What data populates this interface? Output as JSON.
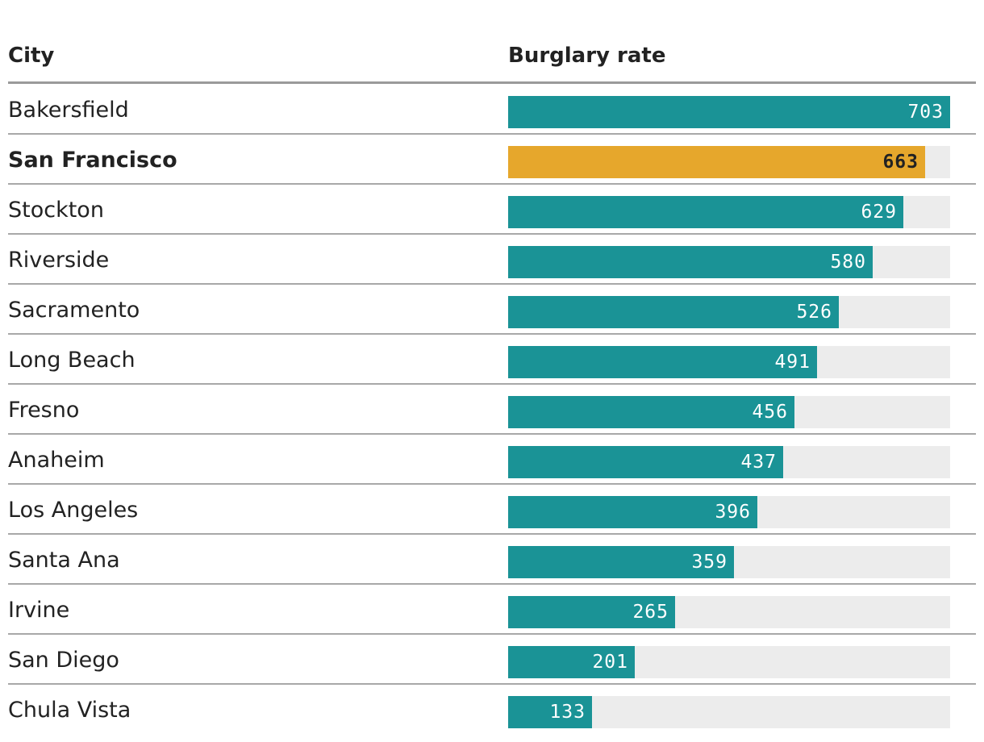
{
  "chart_data": {
    "type": "table",
    "columns": [
      "City",
      "Burglary rate"
    ],
    "rows": [
      {
        "city": "Bakersfield",
        "value": 703,
        "highlight": false
      },
      {
        "city": "San Francisco",
        "value": 663,
        "highlight": true
      },
      {
        "city": "Stockton",
        "value": 629,
        "highlight": false
      },
      {
        "city": "Riverside",
        "value": 580,
        "highlight": false
      },
      {
        "city": "Sacramento",
        "value": 526,
        "highlight": false
      },
      {
        "city": "Long Beach",
        "value": 491,
        "highlight": false
      },
      {
        "city": "Fresno",
        "value": 456,
        "highlight": false
      },
      {
        "city": "Anaheim",
        "value": 437,
        "highlight": false
      },
      {
        "city": "Los Angeles",
        "value": 396,
        "highlight": false
      },
      {
        "city": "Santa Ana",
        "value": 359,
        "highlight": false
      },
      {
        "city": "Irvine",
        "value": 265,
        "highlight": false
      },
      {
        "city": "San Diego",
        "value": 201,
        "highlight": false
      },
      {
        "city": "Chula Vista",
        "value": 133,
        "highlight": false
      }
    ],
    "max_value": 703,
    "colors": {
      "bar": "#1a9396",
      "highlight_bar": "#e6a72c",
      "track": "#ececec"
    }
  }
}
